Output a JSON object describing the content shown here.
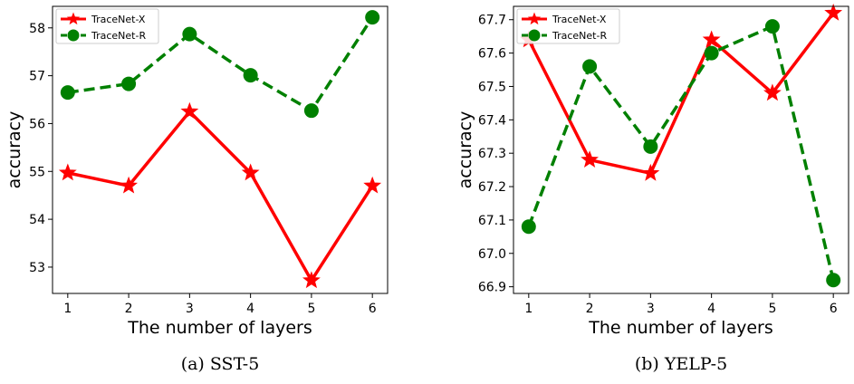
{
  "chart_data": [
    {
      "type": "line",
      "caption": "(a)  SST-5",
      "xlabel": "The number of layers",
      "ylabel": "accuracy",
      "x": [
        1,
        2,
        3,
        4,
        5,
        6
      ],
      "xticks": [
        "1",
        "2",
        "3",
        "4",
        "5",
        "6"
      ],
      "xlim": [
        0.75,
        6.25
      ],
      "ylim": [
        52.45,
        58.45
      ],
      "yticks": [
        "53",
        "54",
        "55",
        "56",
        "57",
        "58"
      ],
      "ytick_values": [
        53,
        54,
        55,
        56,
        57,
        58
      ],
      "legend_position": "top-left",
      "series": [
        {
          "name": "TraceNet-X",
          "color": "#ff0000",
          "style": "solid",
          "marker": "star",
          "values": [
            54.97,
            54.7,
            56.25,
            54.97,
            52.72,
            54.7
          ]
        },
        {
          "name": "TraceNet-R",
          "color": "#008000",
          "style": "dashed",
          "marker": "circle",
          "values": [
            56.65,
            56.83,
            57.87,
            57.01,
            56.27,
            58.22
          ]
        }
      ]
    },
    {
      "type": "line",
      "caption": "(b)  YELP-5",
      "xlabel": "The number of layers",
      "ylabel": "accuracy",
      "x": [
        1,
        2,
        3,
        4,
        5,
        6
      ],
      "xticks": [
        "1",
        "2",
        "3",
        "4",
        "5",
        "6"
      ],
      "xlim": [
        0.75,
        6.25
      ],
      "ylim": [
        66.88,
        67.74
      ],
      "yticks": [
        "66.9",
        "67.0",
        "67.1",
        "67.2",
        "67.3",
        "67.4",
        "67.5",
        "67.6",
        "67.7"
      ],
      "ytick_values": [
        66.9,
        67.0,
        67.1,
        67.2,
        67.3,
        67.4,
        67.5,
        67.6,
        67.7
      ],
      "legend_position": "top-left",
      "series": [
        {
          "name": "TraceNet-X",
          "color": "#ff0000",
          "style": "solid",
          "marker": "star",
          "values": [
            67.64,
            67.28,
            67.24,
            67.64,
            67.48,
            67.72
          ]
        },
        {
          "name": "TraceNet-R",
          "color": "#008000",
          "style": "dashed",
          "marker": "circle",
          "values": [
            67.08,
            67.56,
            67.32,
            67.6,
            67.68,
            66.92
          ]
        }
      ]
    }
  ]
}
